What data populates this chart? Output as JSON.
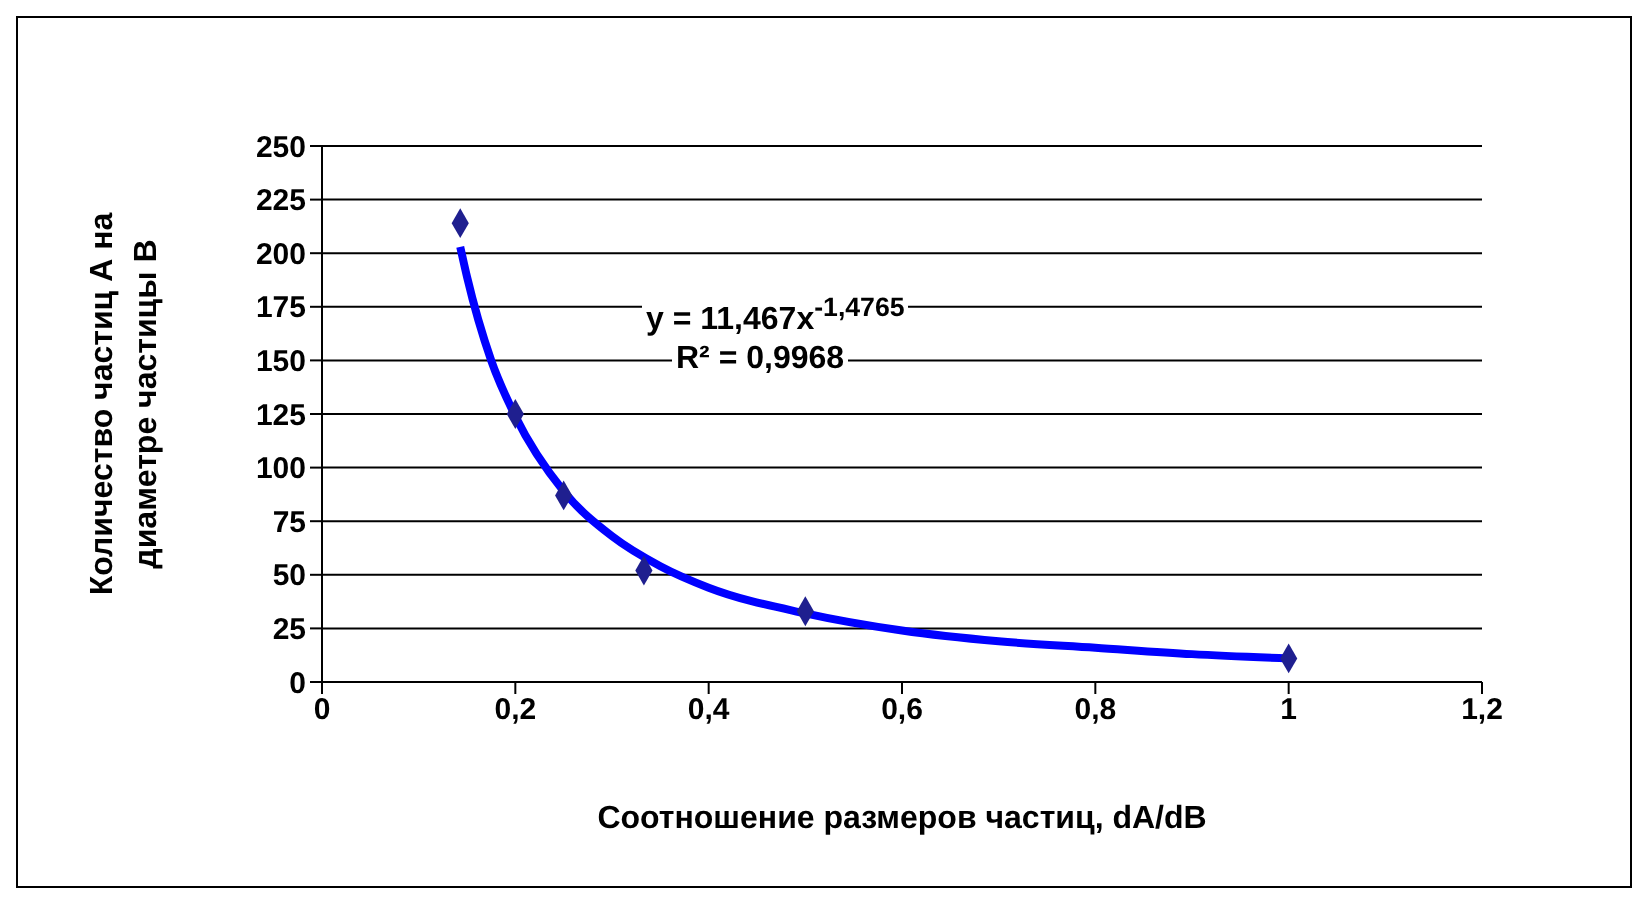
{
  "chart_data": {
    "type": "scatter",
    "xlabel": "Соотношение размеров частиц, dA/dB",
    "ylabel": "Количество частиц А на диаметре частицы В",
    "annotations": [
      "y = 11,467x$^{-1,4765}$",
      "R² = 0,9968"
    ],
    "series": [
      {
        "color": "#1f1f8f",
        "marker": "diamond",
        "x": [
          0.143,
          0.2,
          0.25,
          0.333,
          0.5,
          1
        ],
        "values": [
          214,
          125,
          87,
          52,
          33,
          11
        ]
      },
      {
        "type": "line",
        "color": "#0000ff",
        "marker": "none",
        "line_style": "solid",
        "x": [
          0.143,
          0.15,
          0.175,
          0.2,
          0.25,
          0.3,
          0.35,
          0.4,
          0.5,
          0.6,
          0.7,
          0.8,
          0.9,
          1
        ],
        "values": [
          203,
          189,
          150,
          124,
          89,
          68,
          54,
          44,
          32,
          24,
          19,
          16,
          13,
          11
        ]
      }
    ],
    "xlim": [
      0,
      1.2
    ],
    "xticks": [
      0,
      {
        "value": 0.2,
        "label": "0,2"
      },
      {
        "value": 0.4,
        "label": "0,4"
      },
      {
        "value": 0.6,
        "label": "0,6"
      },
      {
        "value": 0.8,
        "label": "0,8"
      },
      1,
      {
        "value": 1.2,
        "label": "1,2"
      }
    ],
    "ylim": [
      0,
      250
    ],
    "yticks": [
      0,
      25,
      50,
      75,
      100,
      125,
      150,
      175,
      200,
      225,
      250
    ],
    "grid": "y",
    "legend": false
  }
}
